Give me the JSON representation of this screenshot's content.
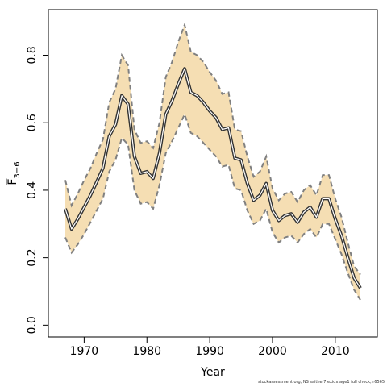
{
  "chart_data": {
    "type": "area",
    "xlabel": "Year",
    "ylabel": {
      "base": "F",
      "sub": "3−6"
    },
    "xlim": [
      1964.3,
      2016.7
    ],
    "ylim": [
      -0.035,
      0.935
    ],
    "xticks": [
      "1970",
      "1980",
      "1990",
      "2000",
      "2010"
    ],
    "xtick_values": [
      1970,
      1980,
      1990,
      2000,
      2010
    ],
    "yticks": [
      "0.0",
      "0.2",
      "0.4",
      "0.6",
      "0.8"
    ],
    "ytick_values": [
      0,
      0.2,
      0.4,
      0.6,
      0.8
    ],
    "grid": false,
    "colors": {
      "band": "#f5deb3",
      "band_edge": "#808080",
      "line": "#333333",
      "line_halo": "#ffffff",
      "frame": "#000000"
    },
    "x": [
      1967,
      1968,
      1969,
      1970,
      1971,
      1972,
      1973,
      1974,
      1975,
      1976,
      1977,
      1978,
      1979,
      1980,
      1981,
      1982,
      1983,
      1984,
      1985,
      1986,
      1987,
      1988,
      1989,
      1990,
      1991,
      1992,
      1993,
      1994,
      1995,
      1996,
      1997,
      1998,
      1999,
      2000,
      2001,
      2002,
      2003,
      2004,
      2005,
      2006,
      2007,
      2008,
      2009,
      2010,
      2011,
      2012,
      2013,
      2014
    ],
    "series": [
      {
        "name": "",
        "values": [
          0.345,
          0.285,
          0.315,
          0.35,
          0.385,
          0.425,
          0.465,
          0.56,
          0.595,
          0.68,
          0.655,
          0.5,
          0.45,
          0.455,
          0.435,
          0.51,
          0.625,
          0.665,
          0.715,
          0.76,
          0.69,
          0.68,
          0.66,
          0.635,
          0.615,
          0.58,
          0.585,
          0.495,
          0.49,
          0.42,
          0.37,
          0.385,
          0.42,
          0.34,
          0.31,
          0.325,
          0.33,
          0.305,
          0.335,
          0.35,
          0.32,
          0.375,
          0.375,
          0.315,
          0.265,
          0.2,
          0.14,
          0.11
        ]
      },
      {
        "name": "",
        "values": [
          0.43,
          0.355,
          0.39,
          0.43,
          0.465,
          0.51,
          0.55,
          0.66,
          0.7,
          0.8,
          0.77,
          0.58,
          0.54,
          0.545,
          0.525,
          0.6,
          0.735,
          0.78,
          0.84,
          0.89,
          0.81,
          0.8,
          0.78,
          0.75,
          0.725,
          0.685,
          0.69,
          0.58,
          0.575,
          0.5,
          0.44,
          0.455,
          0.5,
          0.405,
          0.37,
          0.39,
          0.395,
          0.365,
          0.4,
          0.415,
          0.385,
          0.445,
          0.445,
          0.375,
          0.32,
          0.245,
          0.175,
          0.15
        ]
      },
      {
        "name": "",
        "values": [
          0.26,
          0.215,
          0.24,
          0.27,
          0.305,
          0.34,
          0.375,
          0.455,
          0.49,
          0.555,
          0.535,
          0.4,
          0.36,
          0.365,
          0.345,
          0.415,
          0.51,
          0.545,
          0.585,
          0.625,
          0.57,
          0.56,
          0.54,
          0.52,
          0.5,
          0.47,
          0.475,
          0.405,
          0.4,
          0.34,
          0.3,
          0.31,
          0.345,
          0.275,
          0.245,
          0.26,
          0.265,
          0.245,
          0.27,
          0.285,
          0.26,
          0.3,
          0.3,
          0.255,
          0.21,
          0.155,
          0.105,
          0.075
        ]
      }
    ]
  },
  "footer": {
    "credit": "stockassessment.org, NS saithe 7 exidx age1 full check, r6565"
  }
}
